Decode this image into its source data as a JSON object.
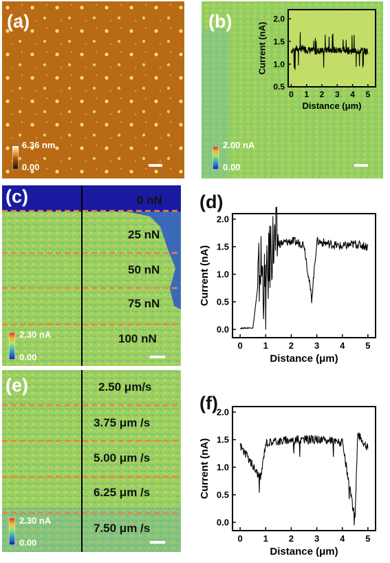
{
  "panels": {
    "a": {
      "label": "(a)",
      "scale_max": "6.36 nm",
      "scale_min": "0.00"
    },
    "b": {
      "label": "(b)",
      "scale_max": "2.00 nA",
      "scale_min": "0.00"
    },
    "c": {
      "label": "(c)",
      "scale_max": "2.30 nA",
      "scale_min": "0.00",
      "zones": [
        "0 nN",
        "25 nN",
        "50 nN",
        "75 nN",
        "100 nN"
      ]
    },
    "d": {
      "label": "(d)"
    },
    "e": {
      "label": "(e)",
      "scale_max": "2.30 nA",
      "scale_min": "0.00",
      "zones": [
        "2.50 μm/s",
        "3.75 μm /s",
        "5.00 μm /s",
        "6.25 μm /s",
        "7.50 μm /s"
      ]
    },
    "f": {
      "label": "(f)"
    }
  },
  "chart_data": [
    {
      "type": "line",
      "panel": "b-inset",
      "xlabel": "Distance (μm)",
      "ylabel": "Current (nA)",
      "xlim": [
        -0.2,
        5.5
      ],
      "ylim": [
        0.5,
        2.2
      ],
      "xticks": [
        "0",
        "1",
        "2",
        "3",
        "4",
        "5"
      ],
      "yticks": [
        "0.5",
        "1.0",
        "1.5",
        "2.0"
      ],
      "series": [
        {
          "x": [
            0,
            0.5,
            1,
            1.5,
            2,
            2.5,
            3,
            3.5,
            4,
            4.5,
            5
          ],
          "values": [
            1.3,
            1.35,
            1.32,
            1.28,
            1.3,
            1.33,
            1.3,
            1.31,
            1.29,
            1.3,
            1.28
          ]
        }
      ]
    },
    {
      "type": "line",
      "panel": "d",
      "xlabel": "Distance (μm)",
      "ylabel": "Current (nA)",
      "xlim": [
        -0.3,
        5.3
      ],
      "ylim": [
        -0.15,
        2.1
      ],
      "xticks": [
        "0",
        "1",
        "2",
        "3",
        "4",
        "5"
      ],
      "yticks": [
        "0.0",
        "0.5",
        "1.0",
        "1.5",
        "2.0"
      ],
      "series": [
        {
          "x": [
            0,
            0.5,
            0.8,
            1.0,
            1.2,
            1.5,
            2,
            2.5,
            2.8,
            3,
            3.5,
            4,
            4.5,
            5
          ],
          "values": [
            0.02,
            0.03,
            1.2,
            0.6,
            1.5,
            1.55,
            1.6,
            1.55,
            0.55,
            1.6,
            1.55,
            1.5,
            1.55,
            1.5
          ]
        }
      ]
    },
    {
      "type": "line",
      "panel": "f",
      "xlabel": "Distance (μm)",
      "ylabel": "Current (nA)",
      "xlim": [
        -0.3,
        5.3
      ],
      "ylim": [
        -0.15,
        2.1
      ],
      "xticks": [
        "0",
        "1",
        "2",
        "3",
        "4",
        "5"
      ],
      "yticks": [
        "0.0",
        "0.5",
        "1.0",
        "1.5",
        "2.0"
      ],
      "series": [
        {
          "x": [
            0,
            0.8,
            1,
            2,
            3,
            4,
            4.4,
            4.5,
            4.6,
            5
          ],
          "values": [
            1.4,
            0.8,
            1.45,
            1.5,
            1.5,
            1.45,
            0.3,
            0.15,
            1.6,
            1.35
          ]
        }
      ]
    }
  ]
}
